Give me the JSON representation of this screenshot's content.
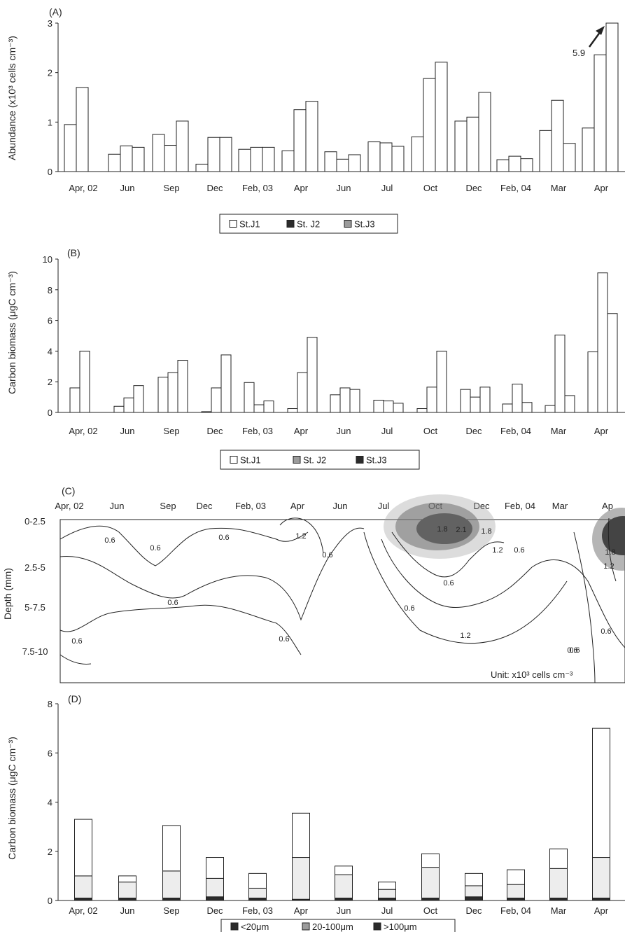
{
  "chart_data": [
    {
      "panel": "(A)",
      "type": "bar",
      "categories": [
        "Apr, 02",
        "Jun",
        "Sep",
        "Dec",
        "Feb, 03",
        "Apr",
        "Jun",
        "Jul",
        "Oct",
        "Dec",
        "Feb, 04",
        "Mar",
        "Apr"
      ],
      "series": [
        {
          "name": "St.J1",
          "values": [
            0.95,
            0.35,
            0.75,
            0.15,
            0.45,
            0.42,
            0.4,
            0.6,
            0.7,
            1.02,
            0.24,
            0.83,
            0.88
          ]
        },
        {
          "name": "St. J2",
          "values": [
            1.7,
            0.52,
            0.53,
            0.69,
            0.49,
            1.25,
            0.25,
            0.58,
            1.88,
            1.1,
            0.31,
            1.44,
            2.36
          ]
        },
        {
          "name": "St.J3",
          "values": [
            0,
            0.49,
            1.02,
            0.69,
            0.49,
            1.42,
            0.34,
            0.51,
            2.21,
            1.6,
            0.26,
            0.57,
            3.0
          ]
        }
      ],
      "ylabel": "Abundance (x10³ cells cm⁻³)",
      "ylim": [
        0,
        3
      ],
      "yticks": [
        "0",
        "1",
        "2",
        "3"
      ],
      "annotation": "5.9",
      "legend": [
        "St.J1",
        "St. J2",
        "St.J3"
      ]
    },
    {
      "panel": "(B)",
      "type": "bar",
      "categories": [
        "Apr, 02",
        "Jun",
        "Sep",
        "Dec",
        "Feb, 03",
        "Apr",
        "Jun",
        "Jul",
        "Oct",
        "Dec",
        "Feb, 04",
        "Mar",
        "Apr"
      ],
      "series": [
        {
          "name": "St.J1",
          "values": [
            1.6,
            0.4,
            2.3,
            0.05,
            1.95,
            0.25,
            1.15,
            0.8,
            0.25,
            1.5,
            0.55,
            0.45,
            3.95
          ]
        },
        {
          "name": "St. J2",
          "values": [
            4.0,
            0.95,
            2.6,
            1.6,
            0.5,
            2.6,
            1.6,
            0.75,
            1.65,
            1.0,
            1.85,
            5.05,
            9.1
          ]
        },
        {
          "name": "St.J3",
          "values": [
            0,
            1.75,
            3.4,
            3.75,
            0.75,
            4.9,
            1.5,
            0.6,
            4.0,
            1.65,
            0.65,
            1.1,
            6.45
          ]
        }
      ],
      "ylabel": "Carbon biomass (μgC cm⁻³)",
      "ylim": [
        0,
        10
      ],
      "yticks": [
        "0",
        "2",
        "4",
        "6",
        "8",
        "10"
      ],
      "legend": [
        "St.J1",
        "St. J2",
        "St.J3"
      ]
    },
    {
      "panel": "(C)",
      "type": "heatmap",
      "x_labels": [
        "Apr, 02",
        "Jun",
        "Sep",
        "Dec",
        "Feb, 03",
        "Apr",
        "Jun",
        "Jul",
        "Oct",
        "Dec",
        "Feb, 04",
        "Mar",
        "Ap"
      ],
      "y_labels": [
        "0-2.5",
        "2.5-5",
        "5-7.5",
        "7.5-10"
      ],
      "ylabel": "Depth (mm)",
      "contour_labels": [
        "0.6",
        "0.6",
        "0.6",
        "0.6",
        "1.2",
        "0.6",
        "0.6",
        "0.6",
        "1.8",
        "2.1",
        "1.8",
        "1.2",
        "0.6",
        "0.6",
        "1.2",
        "0.6",
        "0.6",
        "1.8",
        "1.2",
        "0.6",
        "0.6"
      ],
      "unit_text": "Unit: x10³ cells cm⁻³"
    },
    {
      "panel": "(D)",
      "type": "bar",
      "stacked": true,
      "categories": [
        "Apr, 02",
        "Jun",
        "Sep",
        "Dec",
        "Feb, 03",
        "Apr",
        "Jun",
        "Jul",
        "Oct",
        "Dec",
        "Feb, 04",
        "Mar",
        "Apr"
      ],
      "series": [
        {
          "name": "<20μm",
          "values": [
            2.3,
            0.25,
            1.85,
            0.85,
            0.6,
            1.8,
            0.35,
            0.3,
            0.55,
            0.5,
            0.6,
            0.8,
            5.25
          ]
        },
        {
          "name": "20-100μm",
          "values": [
            0.9,
            0.65,
            1.1,
            0.75,
            0.4,
            1.7,
            0.95,
            0.35,
            1.25,
            0.45,
            0.55,
            1.2,
            1.65
          ]
        },
        {
          "name": ">100μm",
          "values": [
            0.1,
            0.1,
            0.1,
            0.15,
            0.1,
            0.05,
            0.1,
            0.1,
            0.1,
            0.15,
            0.1,
            0.1,
            0.1
          ]
        }
      ],
      "ylabel": "Carbon biomass (μgC cm⁻³)",
      "ylim": [
        0,
        8
      ],
      "yticks": [
        "0",
        "2",
        "4",
        "6",
        "8"
      ],
      "legend": [
        "<20μm",
        "20-100μm",
        ">100μm"
      ]
    }
  ],
  "colors": {
    "bar_white": "#ffffff",
    "bar_light": "#ededed",
    "bar_mid": "#9b9b9b",
    "bar_dark": "#2b2b2b",
    "stroke": "#222222",
    "contour_dark": "#1c1c1c"
  }
}
